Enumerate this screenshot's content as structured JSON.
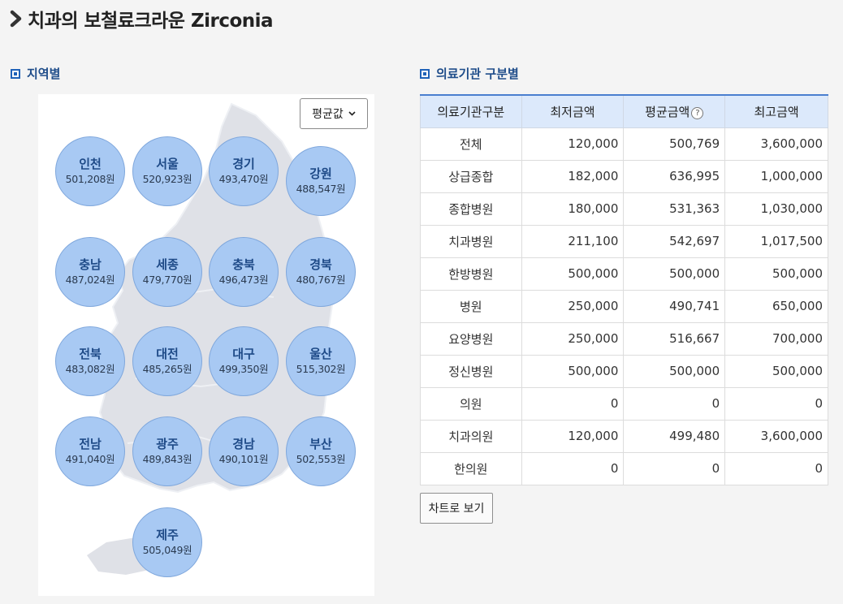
{
  "header": {
    "title": "치과의 보철료크라운 Zirconia"
  },
  "region_section": {
    "label": "지역별"
  },
  "institution_section": {
    "label": "의료기관 구분별"
  },
  "stat_select": {
    "selected": "평균값"
  },
  "regions": [
    {
      "name": "인천",
      "value": "501,208원"
    },
    {
      "name": "서울",
      "value": "520,923원"
    },
    {
      "name": "경기",
      "value": "493,470원"
    },
    {
      "name": "강원",
      "value": "488,547원"
    },
    {
      "name": "충남",
      "value": "487,024원"
    },
    {
      "name": "세종",
      "value": "479,770원"
    },
    {
      "name": "충북",
      "value": "496,473원"
    },
    {
      "name": "경북",
      "value": "480,767원"
    },
    {
      "name": "전북",
      "value": "483,082원"
    },
    {
      "name": "대전",
      "value": "485,265원"
    },
    {
      "name": "대구",
      "value": "499,350원"
    },
    {
      "name": "울산",
      "value": "515,302원"
    },
    {
      "name": "전남",
      "value": "491,040원"
    },
    {
      "name": "광주",
      "value": "489,843원"
    },
    {
      "name": "경남",
      "value": "490,101원"
    },
    {
      "name": "부산",
      "value": "502,553원"
    },
    {
      "name": "제주",
      "value": "505,049원"
    }
  ],
  "table": {
    "headers": [
      "의료기관구분",
      "최저금액",
      "평균금액",
      "최고금액"
    ],
    "help_icon": "?",
    "rows": [
      [
        "전체",
        "120,000",
        "500,769",
        "3,600,000"
      ],
      [
        "상급종합",
        "182,000",
        "636,995",
        "1,000,000"
      ],
      [
        "종합병원",
        "180,000",
        "531,363",
        "1,030,000"
      ],
      [
        "치과병원",
        "211,100",
        "542,697",
        "1,017,500"
      ],
      [
        "한방병원",
        "500,000",
        "500,000",
        "500,000"
      ],
      [
        "병원",
        "250,000",
        "490,741",
        "650,000"
      ],
      [
        "요양병원",
        "250,000",
        "516,667",
        "700,000"
      ],
      [
        "정신병원",
        "500,000",
        "500,000",
        "500,000"
      ],
      [
        "의원",
        "0",
        "0",
        "0"
      ],
      [
        "치과의원",
        "120,000",
        "499,480",
        "3,600,000"
      ],
      [
        "한의원",
        "0",
        "0",
        "0"
      ]
    ]
  },
  "chart_button": {
    "label": "차트로 보기"
  },
  "colors": {
    "accent": "#1f62b8",
    "bubble": "#a8c9f3",
    "table_header": "#dce9fb"
  }
}
